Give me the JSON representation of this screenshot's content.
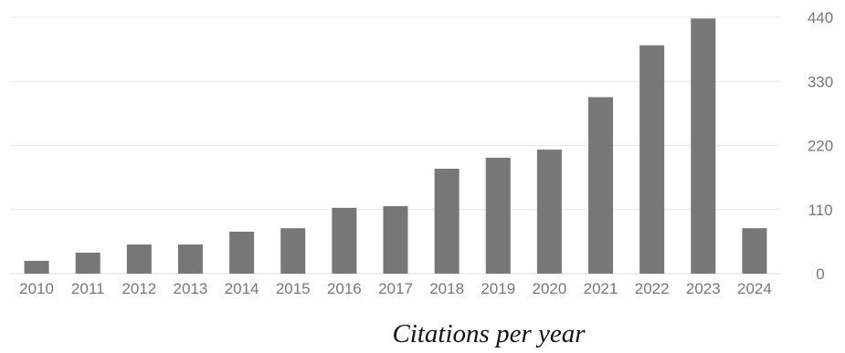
{
  "chart_data": {
    "type": "bar",
    "title": "",
    "xlabel": "Citations per year",
    "ylabel": "",
    "categories": [
      "2010",
      "2011",
      "2012",
      "2013",
      "2014",
      "2015",
      "2016",
      "2017",
      "2018",
      "2019",
      "2020",
      "2021",
      "2022",
      "2023",
      "2024"
    ],
    "values": [
      22,
      36,
      50,
      50,
      72,
      78,
      113,
      116,
      180,
      199,
      213,
      303,
      392,
      438,
      78
    ],
    "ylim": [
      0,
      440
    ],
    "yticks": [
      "0",
      "110",
      "220",
      "330",
      "440"
    ],
    "y_axis_position": "right",
    "grid": true,
    "bar_color": "#777777",
    "grid_color": "#e8e8e8",
    "tick_label_color": "#777777"
  }
}
